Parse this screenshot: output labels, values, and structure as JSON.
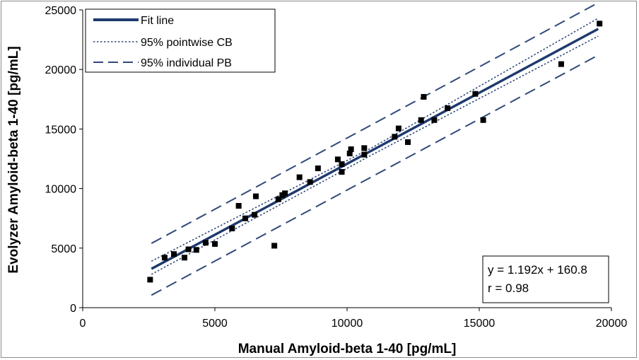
{
  "chart_data": {
    "type": "scatter",
    "title": "",
    "xlabel": "Manual Amyloid-beta 1-40 [pg/mL]",
    "ylabel": "Evolyzer Amyloid-beta 1-40 [pg/mL]",
    "xlim": [
      0,
      20000
    ],
    "ylim": [
      0,
      25000
    ],
    "xticks": [
      0,
      5000,
      10000,
      15000,
      20000
    ],
    "yticks": [
      0,
      5000,
      10000,
      15000,
      20000,
      25000
    ],
    "xtick_labels": [
      "0",
      "5000",
      "10000",
      "15000",
      "20000"
    ],
    "ytick_labels": [
      "0",
      "5000",
      "10000",
      "15000",
      "20000",
      "25000"
    ],
    "grid": false,
    "legend_position": "top-left",
    "legend": [
      {
        "label": "Fit line",
        "style": "solid-thick"
      },
      {
        "label": "95% pointwise CB",
        "style": "dotted"
      },
      {
        "label": "95% individual PB",
        "style": "dashed"
      }
    ],
    "annotation": {
      "equation": "y = 1.192x + 160.8",
      "r": "r = 0.98",
      "position": "bottom-right"
    },
    "fit": {
      "slope": 1.192,
      "intercept": 160.8,
      "x_range": [
        2600,
        19500
      ]
    },
    "pointwise_cb": {
      "x": [
        2600,
        11000,
        19500
      ],
      "upper": [
        3900,
        13500,
        24300
      ],
      "lower": [
        2800,
        12900,
        22800
      ]
    },
    "individual_pb": {
      "x": [
        2600,
        19500
      ],
      "upper": [
        5400,
        25600
      ],
      "lower": [
        1050,
        21200
      ]
    },
    "points": [
      {
        "x": 2550,
        "y": 2350
      },
      {
        "x": 3100,
        "y": 4200
      },
      {
        "x": 3450,
        "y": 4500
      },
      {
        "x": 3850,
        "y": 4200
      },
      {
        "x": 4000,
        "y": 4900
      },
      {
        "x": 4300,
        "y": 4850
      },
      {
        "x": 4650,
        "y": 5450
      },
      {
        "x": 5000,
        "y": 5350
      },
      {
        "x": 5650,
        "y": 6650
      },
      {
        "x": 5900,
        "y": 8550
      },
      {
        "x": 6150,
        "y": 7500
      },
      {
        "x": 6500,
        "y": 7800
      },
      {
        "x": 6550,
        "y": 9350
      },
      {
        "x": 7250,
        "y": 5200
      },
      {
        "x": 7400,
        "y": 9100
      },
      {
        "x": 7550,
        "y": 9450
      },
      {
        "x": 7650,
        "y": 9600
      },
      {
        "x": 8200,
        "y": 10950
      },
      {
        "x": 8600,
        "y": 10550
      },
      {
        "x": 8900,
        "y": 11700
      },
      {
        "x": 9650,
        "y": 12450
      },
      {
        "x": 9800,
        "y": 11400
      },
      {
        "x": 9800,
        "y": 12050
      },
      {
        "x": 10100,
        "y": 12950
      },
      {
        "x": 10150,
        "y": 13300
      },
      {
        "x": 10650,
        "y": 12850
      },
      {
        "x": 10650,
        "y": 13400
      },
      {
        "x": 11800,
        "y": 14350
      },
      {
        "x": 11950,
        "y": 15050
      },
      {
        "x": 12300,
        "y": 13900
      },
      {
        "x": 12800,
        "y": 15750
      },
      {
        "x": 12900,
        "y": 17700
      },
      {
        "x": 13300,
        "y": 15750
      },
      {
        "x": 13800,
        "y": 16750
      },
      {
        "x": 14850,
        "y": 17950
      },
      {
        "x": 15150,
        "y": 15750
      },
      {
        "x": 18100,
        "y": 20450
      },
      {
        "x": 19550,
        "y": 23850
      }
    ]
  },
  "style": {
    "fit_color": "#1f3a6e",
    "band_color": "#2f4a7a",
    "point_color": "#000000",
    "axis_color": "#000000"
  }
}
